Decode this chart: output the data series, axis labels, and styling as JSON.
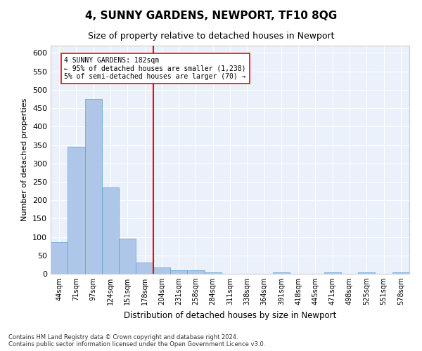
{
  "title1": "4, SUNNY GARDENS, NEWPORT, TF10 8QG",
  "title2": "Size of property relative to detached houses in Newport",
  "xlabel": "Distribution of detached houses by size in Newport",
  "ylabel": "Number of detached properties",
  "categories": [
    "44sqm",
    "71sqm",
    "97sqm",
    "124sqm",
    "151sqm",
    "178sqm",
    "204sqm",
    "231sqm",
    "258sqm",
    "284sqm",
    "311sqm",
    "338sqm",
    "364sqm",
    "391sqm",
    "418sqm",
    "445sqm",
    "471sqm",
    "498sqm",
    "525sqm",
    "551sqm",
    "578sqm"
  ],
  "values": [
    85,
    345,
    475,
    235,
    95,
    30,
    18,
    10,
    10,
    3,
    0,
    0,
    0,
    3,
    0,
    0,
    3,
    0,
    3,
    0,
    3
  ],
  "bar_color": "#aec6e8",
  "bar_edge_color": "#5a9fd4",
  "vline_bin": 5,
  "vline_color": "red",
  "annotation_text": "4 SUNNY GARDENS: 182sqm\n← 95% of detached houses are smaller (1,238)\n5% of semi-detached houses are larger (70) →",
  "annotation_box_color": "white",
  "annotation_box_edge": "red",
  "ylim": [
    0,
    620
  ],
  "yticks": [
    0,
    50,
    100,
    150,
    200,
    250,
    300,
    350,
    400,
    450,
    500,
    550,
    600
  ],
  "footnote": "Contains HM Land Registry data © Crown copyright and database right 2024.\nContains public sector information licensed under the Open Government Licence v3.0.",
  "bg_color": "#eaf1fb",
  "fig_bg": "#ffffff",
  "grid_color": "#ffffff",
  "title1_fontsize": 11,
  "title2_fontsize": 9
}
